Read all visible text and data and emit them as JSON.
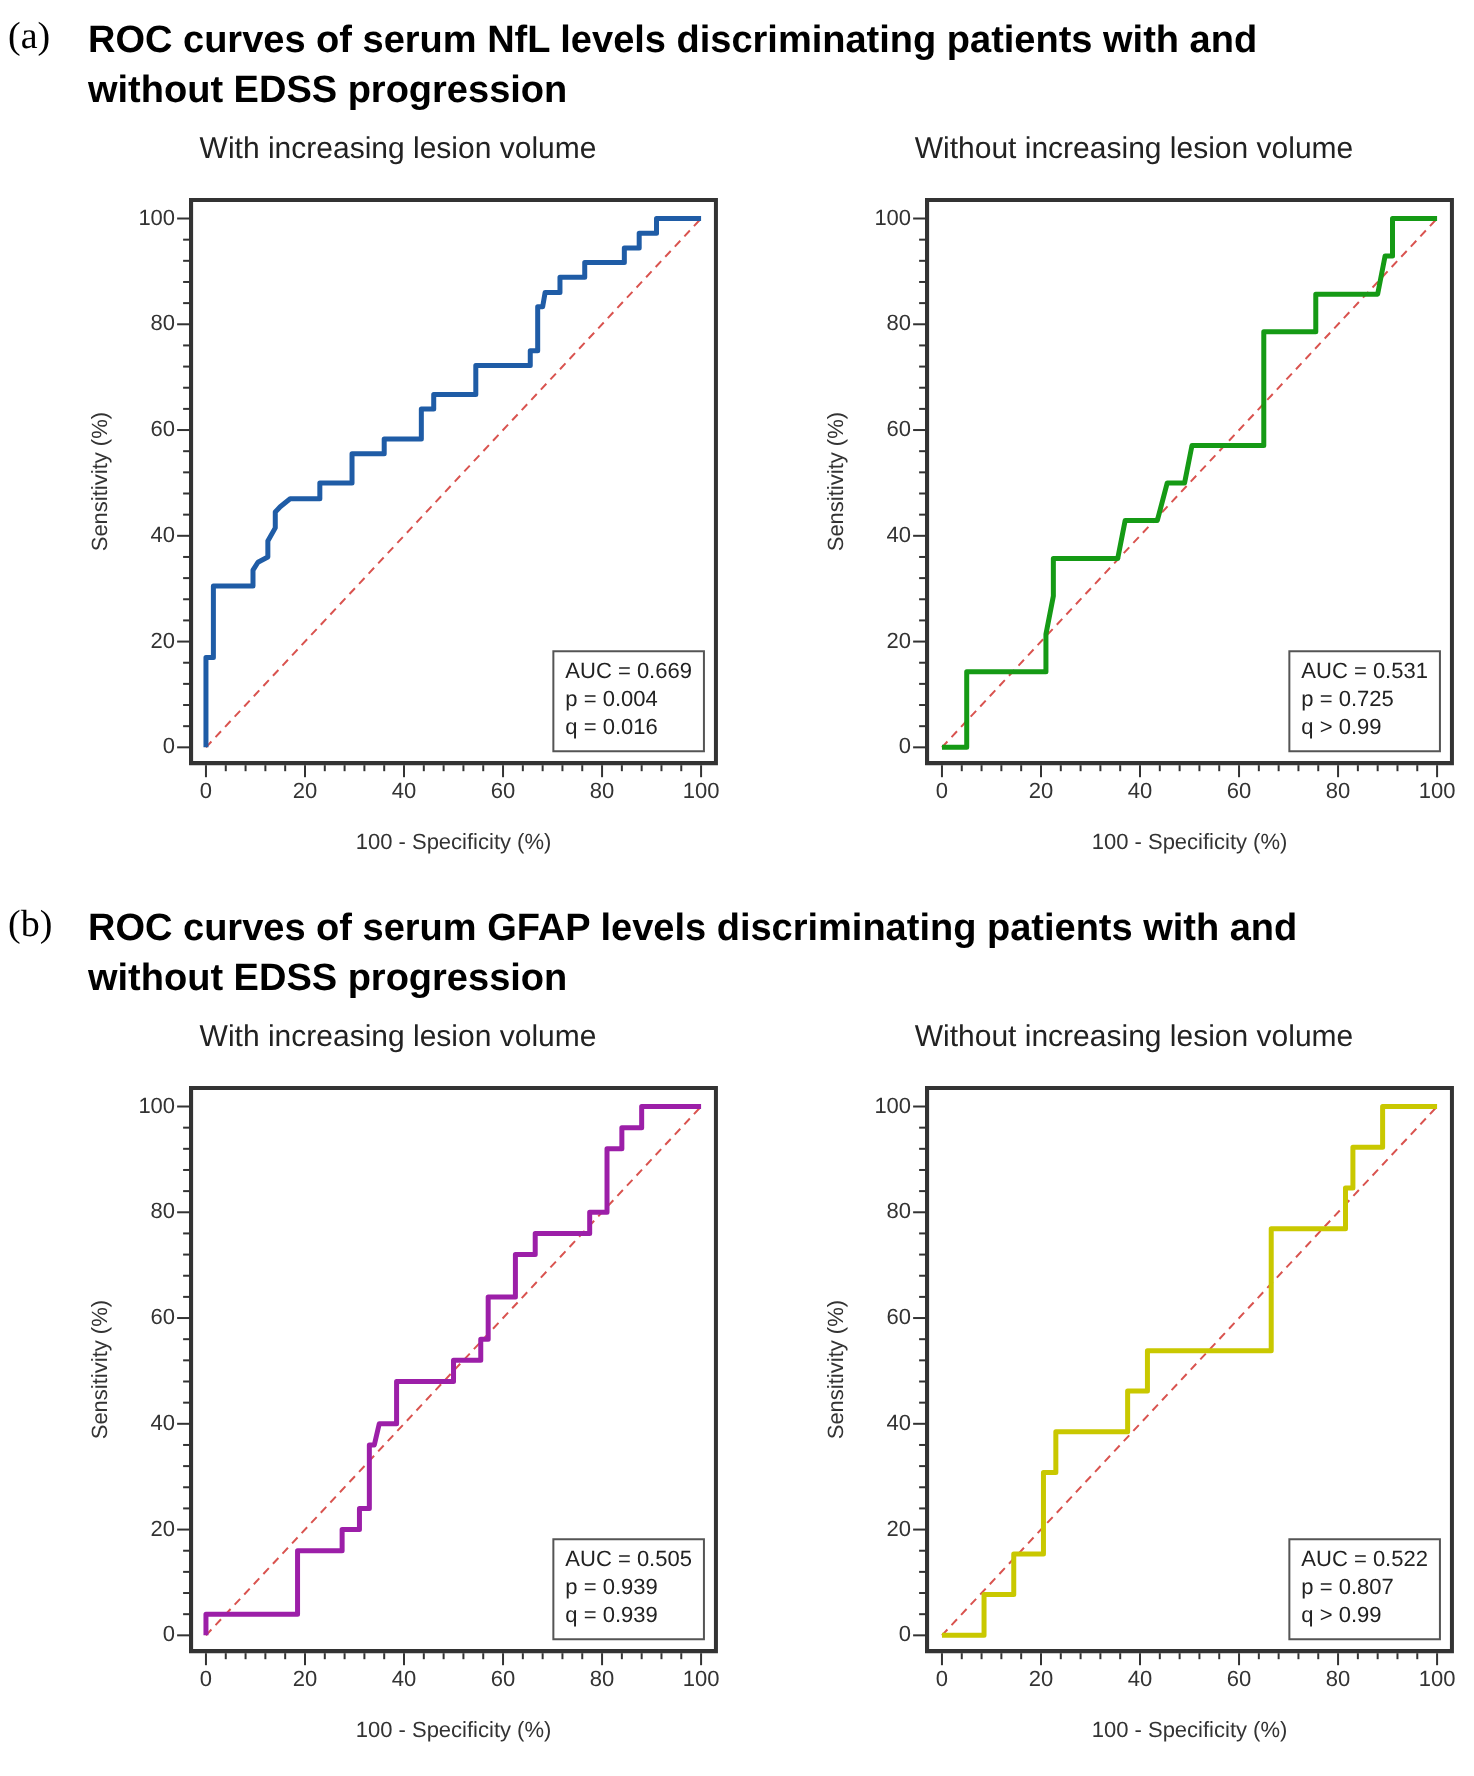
{
  "chart_data": [
    {
      "type": "line",
      "title": "ROC curves of serum NfL levels discriminating patients with and without EDSS progression",
      "subtitle": "With increasing lesion volume",
      "xlabel": "100 - Specificity (%)",
      "ylabel": "Sensitivity (%)",
      "annotations": [
        "AUC = 0.669\np = 0.004\nq = 0.016",
        "(a)"
      ],
      "xlim": [
        -3,
        103
      ],
      "ylim": [
        -3,
        103.5
      ],
      "xticks": [
        0,
        {
          "value": 4,
          "label": null
        },
        {
          "value": 8,
          "label": null
        },
        {
          "value": 12,
          "label": null
        },
        {
          "value": 16,
          "label": null
        },
        20,
        {
          "value": 24,
          "label": null
        },
        {
          "value": 28,
          "label": null
        },
        {
          "value": 32,
          "label": null
        },
        {
          "value": 36,
          "label": null
        },
        40,
        {
          "value": 44,
          "label": null
        },
        {
          "value": 48,
          "label": null
        },
        {
          "value": 52,
          "label": null
        },
        {
          "value": 56,
          "label": null
        },
        60,
        {
          "value": 64,
          "label": null
        },
        {
          "value": 68,
          "label": null
        },
        {
          "value": 72,
          "label": null
        },
        {
          "value": 76,
          "label": null
        },
        80,
        {
          "value": 84,
          "label": null
        },
        {
          "value": 88,
          "label": null
        },
        {
          "value": 92,
          "label": null
        },
        {
          "value": 96,
          "label": null
        },
        100
      ],
      "yticks": [
        0,
        {
          "value": 4,
          "label": null
        },
        {
          "value": 8,
          "label": null
        },
        {
          "value": 12,
          "label": null
        },
        {
          "value": 16,
          "label": null
        },
        20,
        {
          "value": 24,
          "label": null
        },
        {
          "value": 28,
          "label": null
        },
        {
          "value": 32,
          "label": null
        },
        {
          "value": 36,
          "label": null
        },
        40,
        {
          "value": 44,
          "label": null
        },
        {
          "value": 48,
          "label": null
        },
        {
          "value": 52,
          "label": null
        },
        {
          "value": 56,
          "label": null
        },
        60,
        {
          "value": 64,
          "label": null
        },
        {
          "value": 68,
          "label": null
        },
        {
          "value": 72,
          "label": null
        },
        {
          "value": 76,
          "label": null
        },
        80,
        {
          "value": 84,
          "label": null
        },
        {
          "value": 88,
          "label": null
        },
        {
          "value": 92,
          "label": null
        },
        {
          "value": 96,
          "label": null
        },
        100
      ],
      "series": [
        {
          "color": "#1f5ca6",
          "line_style": "solid",
          "x": [
            0,
            0,
            1.5,
            1.5,
            9.5,
            9.5,
            10.5,
            12.5,
            12.5,
            14,
            14,
            15,
            17,
            23,
            23,
            29.5,
            29.5,
            36,
            36,
            43.5,
            43.5,
            46,
            46,
            54.5,
            54.5,
            65.5,
            65.5,
            67,
            67,
            68,
            68.5,
            71.5,
            71.5,
            76.5,
            76.5,
            84.5,
            84.5,
            87.5,
            87.5,
            91,
            91,
            100
          ],
          "values": [
            0,
            17,
            17,
            30.5,
            30.5,
            33.5,
            35,
            36,
            39,
            41.5,
            44.5,
            45.5,
            47,
            47,
            50,
            50,
            55.5,
            55.5,
            58.3,
            58.3,
            64,
            64,
            66.7,
            66.7,
            72.2,
            72.2,
            75,
            75,
            83.3,
            83.3,
            86,
            86,
            88.9,
            88.9,
            91.7,
            91.7,
            94.4,
            94.4,
            97.2,
            97.2,
            100,
            100
          ]
        },
        {
          "color": "#d9534f",
          "line_style": "dashed",
          "x": [
            0,
            100
          ],
          "values": [
            0,
            100
          ]
        }
      ]
    },
    {
      "type": "line",
      "title": "Without increasing lesion volume",
      "xlabel": "100 - Specificity (%)",
      "ylabel": "Sensitivity (%)",
      "annotations": [
        "AUC = 0.531\np = 0.725\nq > 0.99"
      ],
      "xlim": [
        -3,
        103
      ],
      "ylim": [
        -3,
        103.5
      ],
      "xticks": [
        0,
        {
          "value": 4,
          "label": null
        },
        {
          "value": 8,
          "label": null
        },
        {
          "value": 12,
          "label": null
        },
        {
          "value": 16,
          "label": null
        },
        20,
        {
          "value": 24,
          "label": null
        },
        {
          "value": 28,
          "label": null
        },
        {
          "value": 32,
          "label": null
        },
        {
          "value": 36,
          "label": null
        },
        40,
        {
          "value": 44,
          "label": null
        },
        {
          "value": 48,
          "label": null
        },
        {
          "value": 52,
          "label": null
        },
        {
          "value": 56,
          "label": null
        },
        60,
        {
          "value": 64,
          "label": null
        },
        {
          "value": 68,
          "label": null
        },
        {
          "value": 72,
          "label": null
        },
        {
          "value": 76,
          "label": null
        },
        80,
        {
          "value": 84,
          "label": null
        },
        {
          "value": 88,
          "label": null
        },
        {
          "value": 92,
          "label": null
        },
        {
          "value": 96,
          "label": null
        },
        100
      ],
      "yticks": [
        0,
        {
          "value": 4,
          "label": null
        },
        {
          "value": 8,
          "label": null
        },
        {
          "value": 12,
          "label": null
        },
        {
          "value": 16,
          "label": null
        },
        20,
        {
          "value": 24,
          "label": null
        },
        {
          "value": 28,
          "label": null
        },
        {
          "value": 32,
          "label": null
        },
        {
          "value": 36,
          "label": null
        },
        40,
        {
          "value": 44,
          "label": null
        },
        {
          "value": 48,
          "label": null
        },
        {
          "value": 52,
          "label": null
        },
        {
          "value": 56,
          "label": null
        },
        60,
        {
          "value": 64,
          "label": null
        },
        {
          "value": 68,
          "label": null
        },
        {
          "value": 72,
          "label": null
        },
        {
          "value": 76,
          "label": null
        },
        80,
        {
          "value": 84,
          "label": null
        },
        {
          "value": 88,
          "label": null
        },
        {
          "value": 92,
          "label": null
        },
        {
          "value": 96,
          "label": null
        },
        100
      ],
      "series": [
        {
          "color": "#159a15",
          "line_style": "solid",
          "x": [
            0,
            5,
            5,
            21,
            21,
            22.5,
            22.5,
            35.5,
            37,
            43.5,
            45.5,
            49,
            50.5,
            65,
            65,
            75.5,
            75.5,
            88,
            89.5,
            91,
            91,
            100
          ],
          "values": [
            0,
            0,
            14.3,
            14.3,
            21.4,
            28.6,
            35.7,
            35.7,
            42.9,
            42.9,
            50,
            50,
            57.1,
            57.1,
            78.6,
            78.6,
            85.7,
            85.7,
            92.9,
            92.9,
            100,
            100
          ]
        },
        {
          "color": "#d9534f",
          "line_style": "dashed",
          "x": [
            0,
            100
          ],
          "values": [
            0,
            100
          ]
        }
      ]
    },
    {
      "type": "line",
      "title": "ROC curves of serum GFAP levels discriminating patients with and without EDSS progression",
      "subtitle": "With increasing lesion volume",
      "xlabel": "100 - Specificity (%)",
      "ylabel": "Sensitivity (%)",
      "annotations": [
        "AUC = 0.505\np = 0.939\nq = 0.939",
        "(b)"
      ],
      "xlim": [
        -3,
        103
      ],
      "ylim": [
        -3,
        103.5
      ],
      "xticks": [
        0,
        {
          "value": 4,
          "label": null
        },
        {
          "value": 8,
          "label": null
        },
        {
          "value": 12,
          "label": null
        },
        {
          "value": 16,
          "label": null
        },
        20,
        {
          "value": 24,
          "label": null
        },
        {
          "value": 28,
          "label": null
        },
        {
          "value": 32,
          "label": null
        },
        {
          "value": 36,
          "label": null
        },
        40,
        {
          "value": 44,
          "label": null
        },
        {
          "value": 48,
          "label": null
        },
        {
          "value": 52,
          "label": null
        },
        {
          "value": 56,
          "label": null
        },
        60,
        {
          "value": 64,
          "label": null
        },
        {
          "value": 68,
          "label": null
        },
        {
          "value": 72,
          "label": null
        },
        {
          "value": 76,
          "label": null
        },
        80,
        {
          "value": 84,
          "label": null
        },
        {
          "value": 88,
          "label": null
        },
        {
          "value": 92,
          "label": null
        },
        {
          "value": 96,
          "label": null
        },
        100
      ],
      "yticks": [
        0,
        {
          "value": 4,
          "label": null
        },
        {
          "value": 8,
          "label": null
        },
        {
          "value": 12,
          "label": null
        },
        {
          "value": 16,
          "label": null
        },
        20,
        {
          "value": 24,
          "label": null
        },
        {
          "value": 28,
          "label": null
        },
        {
          "value": 32,
          "label": null
        },
        {
          "value": 36,
          "label": null
        },
        40,
        {
          "value": 44,
          "label": null
        },
        {
          "value": 48,
          "label": null
        },
        {
          "value": 52,
          "label": null
        },
        {
          "value": 56,
          "label": null
        },
        60,
        {
          "value": 64,
          "label": null
        },
        {
          "value": 68,
          "label": null
        },
        {
          "value": 72,
          "label": null
        },
        {
          "value": 76,
          "label": null
        },
        80,
        {
          "value": 84,
          "label": null
        },
        {
          "value": 88,
          "label": null
        },
        {
          "value": 92,
          "label": null
        },
        {
          "value": 96,
          "label": null
        },
        100
      ],
      "series": [
        {
          "color": "#9c1fa8",
          "line_style": "solid",
          "x": [
            0,
            0,
            18.5,
            18.5,
            27.5,
            27.5,
            31,
            31,
            33,
            33,
            34,
            35,
            38.5,
            38.5,
            50,
            50,
            55.5,
            55.5,
            57,
            57,
            62.5,
            62.5,
            66.5,
            66.5,
            77.5,
            77.5,
            81,
            81,
            84,
            84,
            88,
            88,
            100
          ],
          "values": [
            0,
            4,
            4,
            16,
            16,
            20,
            20,
            24,
            24,
            36,
            36,
            40,
            40,
            48,
            48,
            52,
            52,
            56,
            56,
            64,
            64,
            72,
            72,
            76,
            76,
            80,
            80,
            92,
            92,
            96,
            96,
            100,
            100
          ]
        },
        {
          "color": "#d9534f",
          "line_style": "dashed",
          "x": [
            0,
            100
          ],
          "values": [
            0,
            100
          ]
        }
      ]
    },
    {
      "type": "line",
      "title": "Without increasing lesion volume",
      "xlabel": "100 - Specificity (%)",
      "ylabel": "Sensitivity (%)",
      "annotations": [
        "AUC = 0.522\np = 0.807\nq > 0.99"
      ],
      "xlim": [
        -3,
        103
      ],
      "ylim": [
        -3,
        103.5
      ],
      "xticks": [
        0,
        {
          "value": 4,
          "label": null
        },
        {
          "value": 8,
          "label": null
        },
        {
          "value": 12,
          "label": null
        },
        {
          "value": 16,
          "label": null
        },
        20,
        {
          "value": 24,
          "label": null
        },
        {
          "value": 28,
          "label": null
        },
        {
          "value": 32,
          "label": null
        },
        {
          "value": 36,
          "label": null
        },
        40,
        {
          "value": 44,
          "label": null
        },
        {
          "value": 48,
          "label": null
        },
        {
          "value": 52,
          "label": null
        },
        {
          "value": 56,
          "label": null
        },
        60,
        {
          "value": 64,
          "label": null
        },
        {
          "value": 68,
          "label": null
        },
        {
          "value": 72,
          "label": null
        },
        {
          "value": 76,
          "label": null
        },
        80,
        {
          "value": 84,
          "label": null
        },
        {
          "value": 88,
          "label": null
        },
        {
          "value": 92,
          "label": null
        },
        {
          "value": 96,
          "label": null
        },
        100
      ],
      "yticks": [
        0,
        {
          "value": 4,
          "label": null
        },
        {
          "value": 8,
          "label": null
        },
        {
          "value": 12,
          "label": null
        },
        {
          "value": 16,
          "label": null
        },
        20,
        {
          "value": 24,
          "label": null
        },
        {
          "value": 28,
          "label": null
        },
        {
          "value": 32,
          "label": null
        },
        {
          "value": 36,
          "label": null
        },
        40,
        {
          "value": 44,
          "label": null
        },
        {
          "value": 48,
          "label": null
        },
        {
          "value": 52,
          "label": null
        },
        {
          "value": 56,
          "label": null
        },
        60,
        {
          "value": 64,
          "label": null
        },
        {
          "value": 68,
          "label": null
        },
        {
          "value": 72,
          "label": null
        },
        {
          "value": 76,
          "label": null
        },
        80,
        {
          "value": 84,
          "label": null
        },
        {
          "value": 88,
          "label": null
        },
        {
          "value": 92,
          "label": null
        },
        {
          "value": 96,
          "label": null
        },
        100
      ],
      "series": [
        {
          "color": "#c9c800",
          "line_style": "solid",
          "x": [
            0,
            8.5,
            8.5,
            14.5,
            14.5,
            20.5,
            20.5,
            23,
            23,
            37.5,
            37.5,
            41.5,
            41.5,
            66.5,
            66.5,
            81.5,
            81.5,
            83,
            83,
            89,
            89,
            100
          ],
          "values": [
            0,
            0,
            7.7,
            7.7,
            15.4,
            15.4,
            30.8,
            30.8,
            38.5,
            38.5,
            46.2,
            46.2,
            53.8,
            53.8,
            76.9,
            76.9,
            84.6,
            84.6,
            92.3,
            92.3,
            100,
            100
          ]
        },
        {
          "color": "#d9534f",
          "line_style": "dashed",
          "x": [
            0,
            100
          ],
          "values": [
            0,
            100
          ]
        }
      ]
    }
  ]
}
